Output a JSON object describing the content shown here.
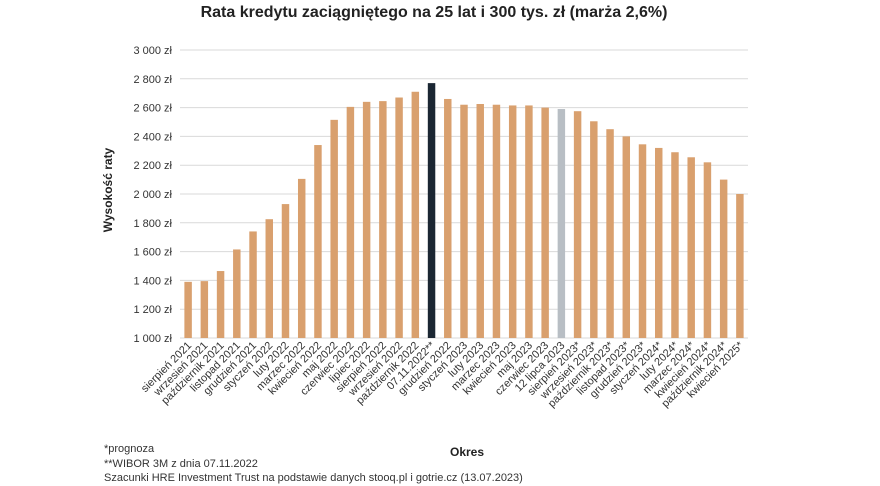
{
  "chart_data": {
    "type": "bar",
    "title": "Rata kredytu zaciągniętego na 25 lat i 300 tys. zł (marża 2,6%)",
    "xlabel": "Okres",
    "ylabel": "Wysokość raty",
    "ylim": [
      1000,
      3000
    ],
    "yticks": [
      "1 000 zł",
      "1 200 zł",
      "1 400 zł",
      "1 600 zł",
      "1 800 zł",
      "2 000 zł",
      "2 200 zł",
      "2 400 zł",
      "2 600 zł",
      "2 800 zł",
      "3 000 zł"
    ],
    "grid": true,
    "legend": "none",
    "colors": {
      "default": "#D9A06E",
      "highlight_dark": "#1B2733",
      "highlight_grey": "#B8BEC4"
    },
    "categories": [
      "sierpień 2021",
      "wrzesień 2021",
      "październik 2021",
      "listopad 2021",
      "grudzień 2021",
      "styczeń 2022",
      "luty 2022",
      "marzec 2022",
      "kwiecień 2022",
      "maj 2022",
      "czerwiec 2022",
      "lipiec 2022",
      "sierpień 2022",
      "wrzesień 2022",
      "październik 2022",
      "07.11.2022**",
      "grudzień 2022",
      "styczeń 2023",
      "luty 2023",
      "marzec 2023",
      "kwiecień 2023",
      "maj 2023",
      "czerwiec 2023",
      "12 lipca 2023",
      "sierpień 2023*",
      "wrzesień 2023*",
      "październik 2023*",
      "listopad 2023*",
      "grudzień 2023*",
      "styczeń 2024*",
      "luty 2024*",
      "marzec 2024*",
      "kwiecień 2024*",
      "październik 2024*",
      "kwiecień 2025*"
    ],
    "values": [
      1390,
      1395,
      1465,
      1615,
      1740,
      1825,
      1930,
      2105,
      2340,
      2515,
      2605,
      2640,
      2645,
      2670,
      2710,
      2770,
      2660,
      2620,
      2625,
      2620,
      2615,
      2615,
      2600,
      2590,
      2575,
      2505,
      2450,
      2400,
      2345,
      2320,
      2290,
      2255,
      2220,
      2100,
      2000
    ],
    "highlight": {
      "15": "highlight_dark",
      "23": "highlight_grey"
    }
  },
  "notes": [
    "*prognoza",
    "**WIBOR 3M z dnia 07.11.2022",
    "Szacunki HRE Investment Trust na podstawie danych stooq.pl i gotrie.cz (13.07.2023)"
  ]
}
